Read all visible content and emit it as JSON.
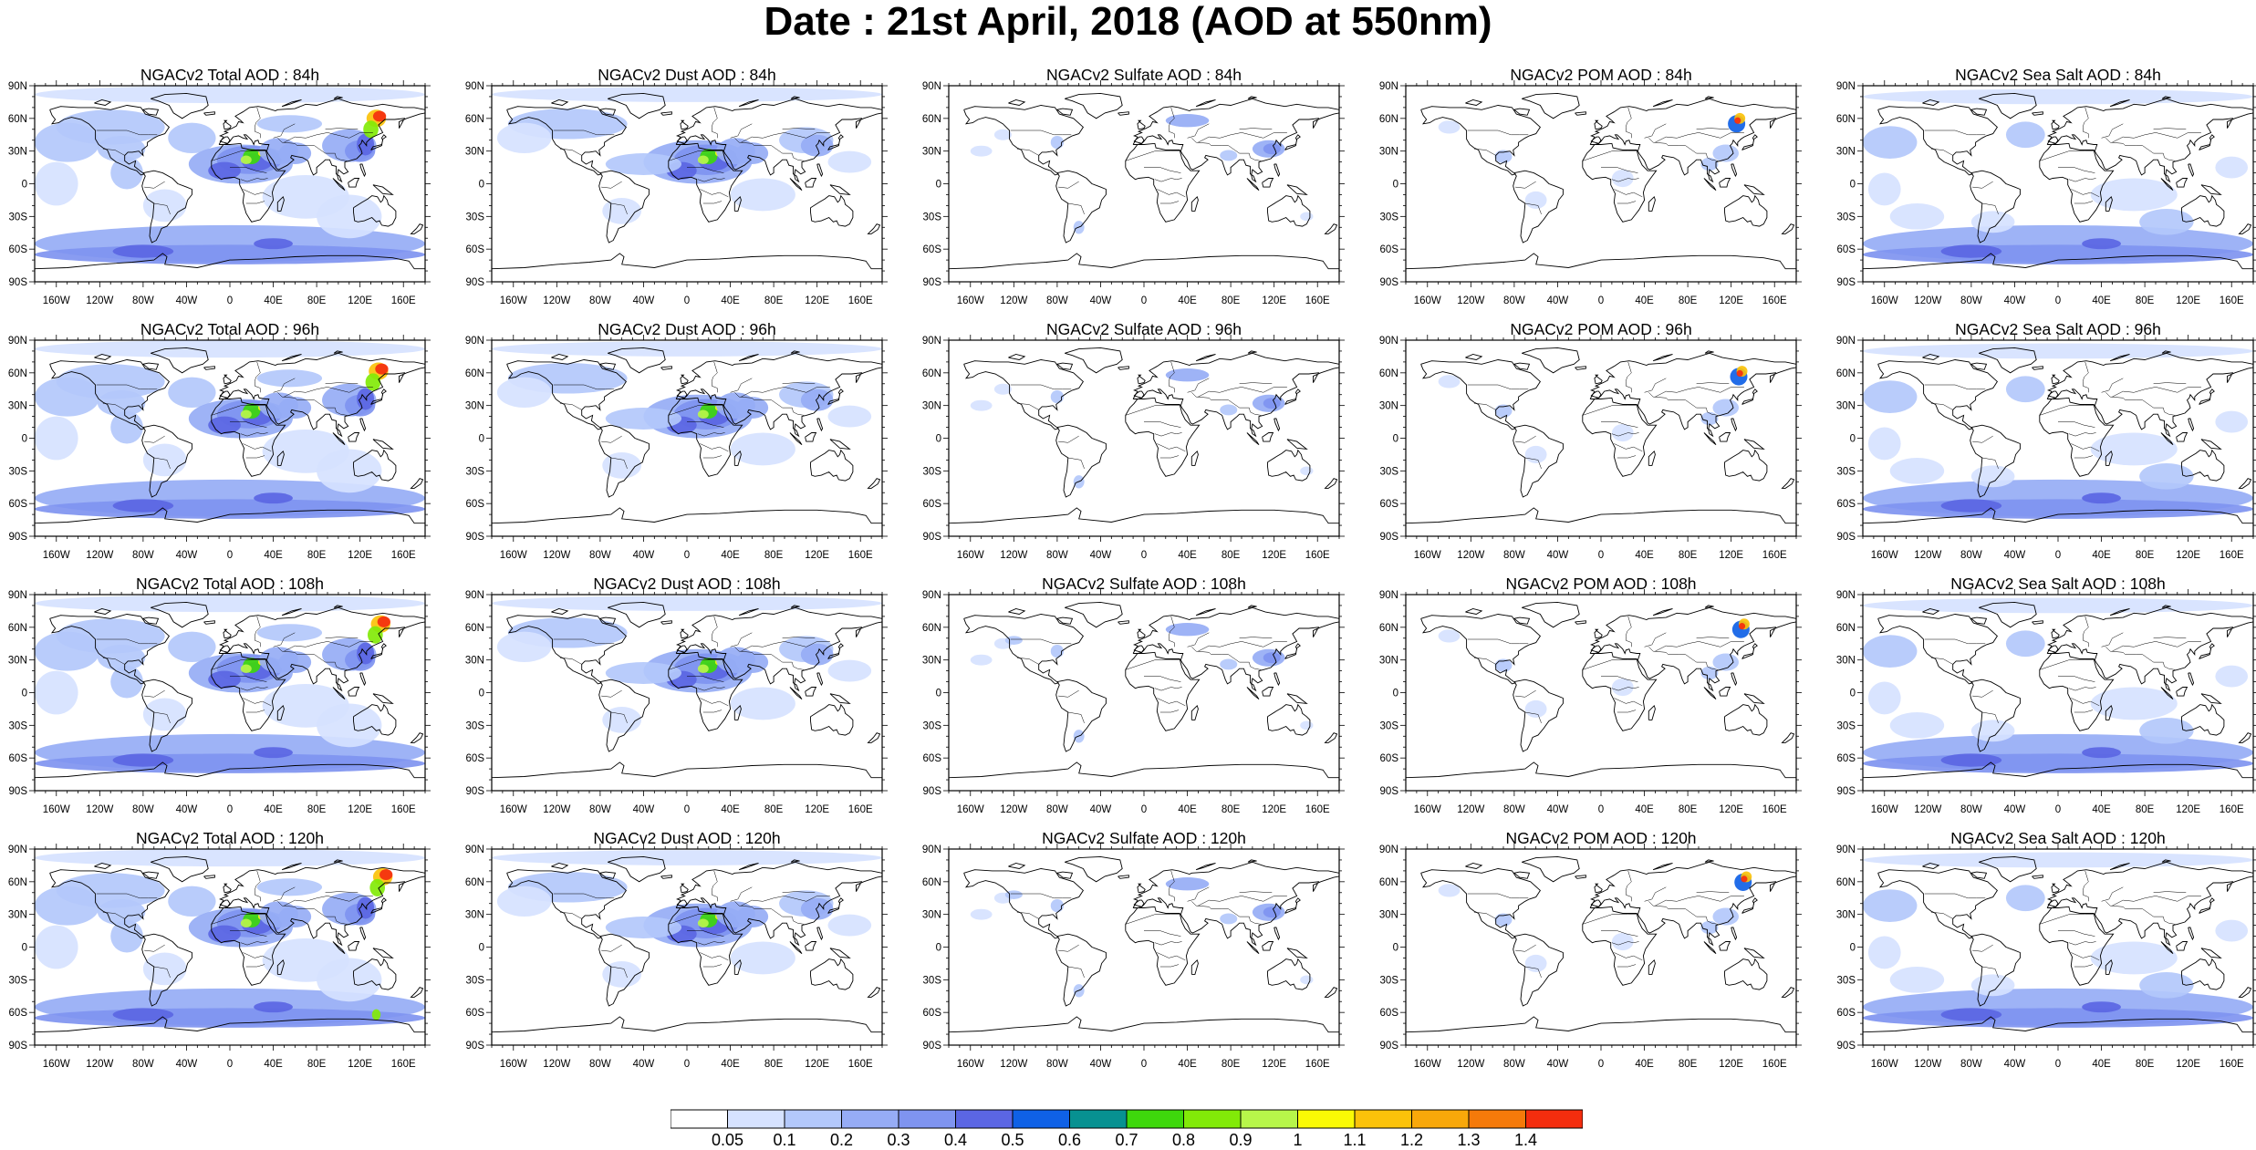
{
  "header": {
    "title": "Date : 21st April, 2018 (AOD at 550nm)"
  },
  "axes": {
    "lat_labels": [
      "90N",
      "60N",
      "30N",
      "0",
      "30S",
      "60S",
      "90S"
    ],
    "lon_labels": [
      "160W",
      "120W",
      "80W",
      "40W",
      "0",
      "40E",
      "80E",
      "120E",
      "160E"
    ]
  },
  "panels": [
    {
      "title": "NGACv2 Total AOD : 84h",
      "field": "total",
      "hour": 84
    },
    {
      "title": "NGACv2 Dust AOD : 84h",
      "field": "dust",
      "hour": 84
    },
    {
      "title": "NGACv2 Sulfate AOD : 84h",
      "field": "sulfate",
      "hour": 84
    },
    {
      "title": "NGACv2 POM AOD : 84h",
      "field": "pom",
      "hour": 84
    },
    {
      "title": "NGACv2 Sea Salt AOD : 84h",
      "field": "seasalt",
      "hour": 84
    },
    {
      "title": "NGACv2 Total AOD : 96h",
      "field": "total",
      "hour": 96
    },
    {
      "title": "NGACv2 Dust AOD : 96h",
      "field": "dust",
      "hour": 96
    },
    {
      "title": "NGACv2 Sulfate AOD : 96h",
      "field": "sulfate",
      "hour": 96
    },
    {
      "title": "NGACv2 POM AOD : 96h",
      "field": "pom",
      "hour": 96
    },
    {
      "title": "NGACv2 Sea Salt AOD : 96h",
      "field": "seasalt",
      "hour": 96
    },
    {
      "title": "NGACv2 Total AOD : 108h",
      "field": "total",
      "hour": 108
    },
    {
      "title": "NGACv2 Dust AOD : 108h",
      "field": "dust",
      "hour": 108
    },
    {
      "title": "NGACv2 Sulfate AOD : 108h",
      "field": "sulfate",
      "hour": 108
    },
    {
      "title": "NGACv2 POM AOD : 108h",
      "field": "pom",
      "hour": 108
    },
    {
      "title": "NGACv2 Sea Salt AOD : 108h",
      "field": "seasalt",
      "hour": 108
    },
    {
      "title": "NGACv2 Total AOD : 120h",
      "field": "total",
      "hour": 120
    },
    {
      "title": "NGACv2 Dust AOD : 120h",
      "field": "dust",
      "hour": 120
    },
    {
      "title": "NGACv2 Sulfate AOD : 120h",
      "field": "sulfate",
      "hour": 120
    },
    {
      "title": "NGACv2 POM AOD : 120h",
      "field": "pom",
      "hour": 120
    },
    {
      "title": "NGACv2 Sea Salt  AOD : 120h",
      "field": "seasalt",
      "hour": 120
    }
  ],
  "colorbar": {
    "labels": [
      "0.05",
      "0.1",
      "0.2",
      "0.3",
      "0.4",
      "0.5",
      "0.6",
      "0.7",
      "0.8",
      "0.9",
      "1",
      "1.1",
      "1.2",
      "1.3",
      "1.4"
    ],
    "colors": [
      "#ffffff",
      "#d6e2ff",
      "#b3c8fb",
      "#96acf5",
      "#7f94f0",
      "#5b66e3",
      "#0f61e6",
      "#079191",
      "#3ed80c",
      "#82ea08",
      "#b7f64a",
      "#fafa05",
      "#fbc20a",
      "#f8a80a",
      "#f57a0a",
      "#f42d0e"
    ]
  }
}
